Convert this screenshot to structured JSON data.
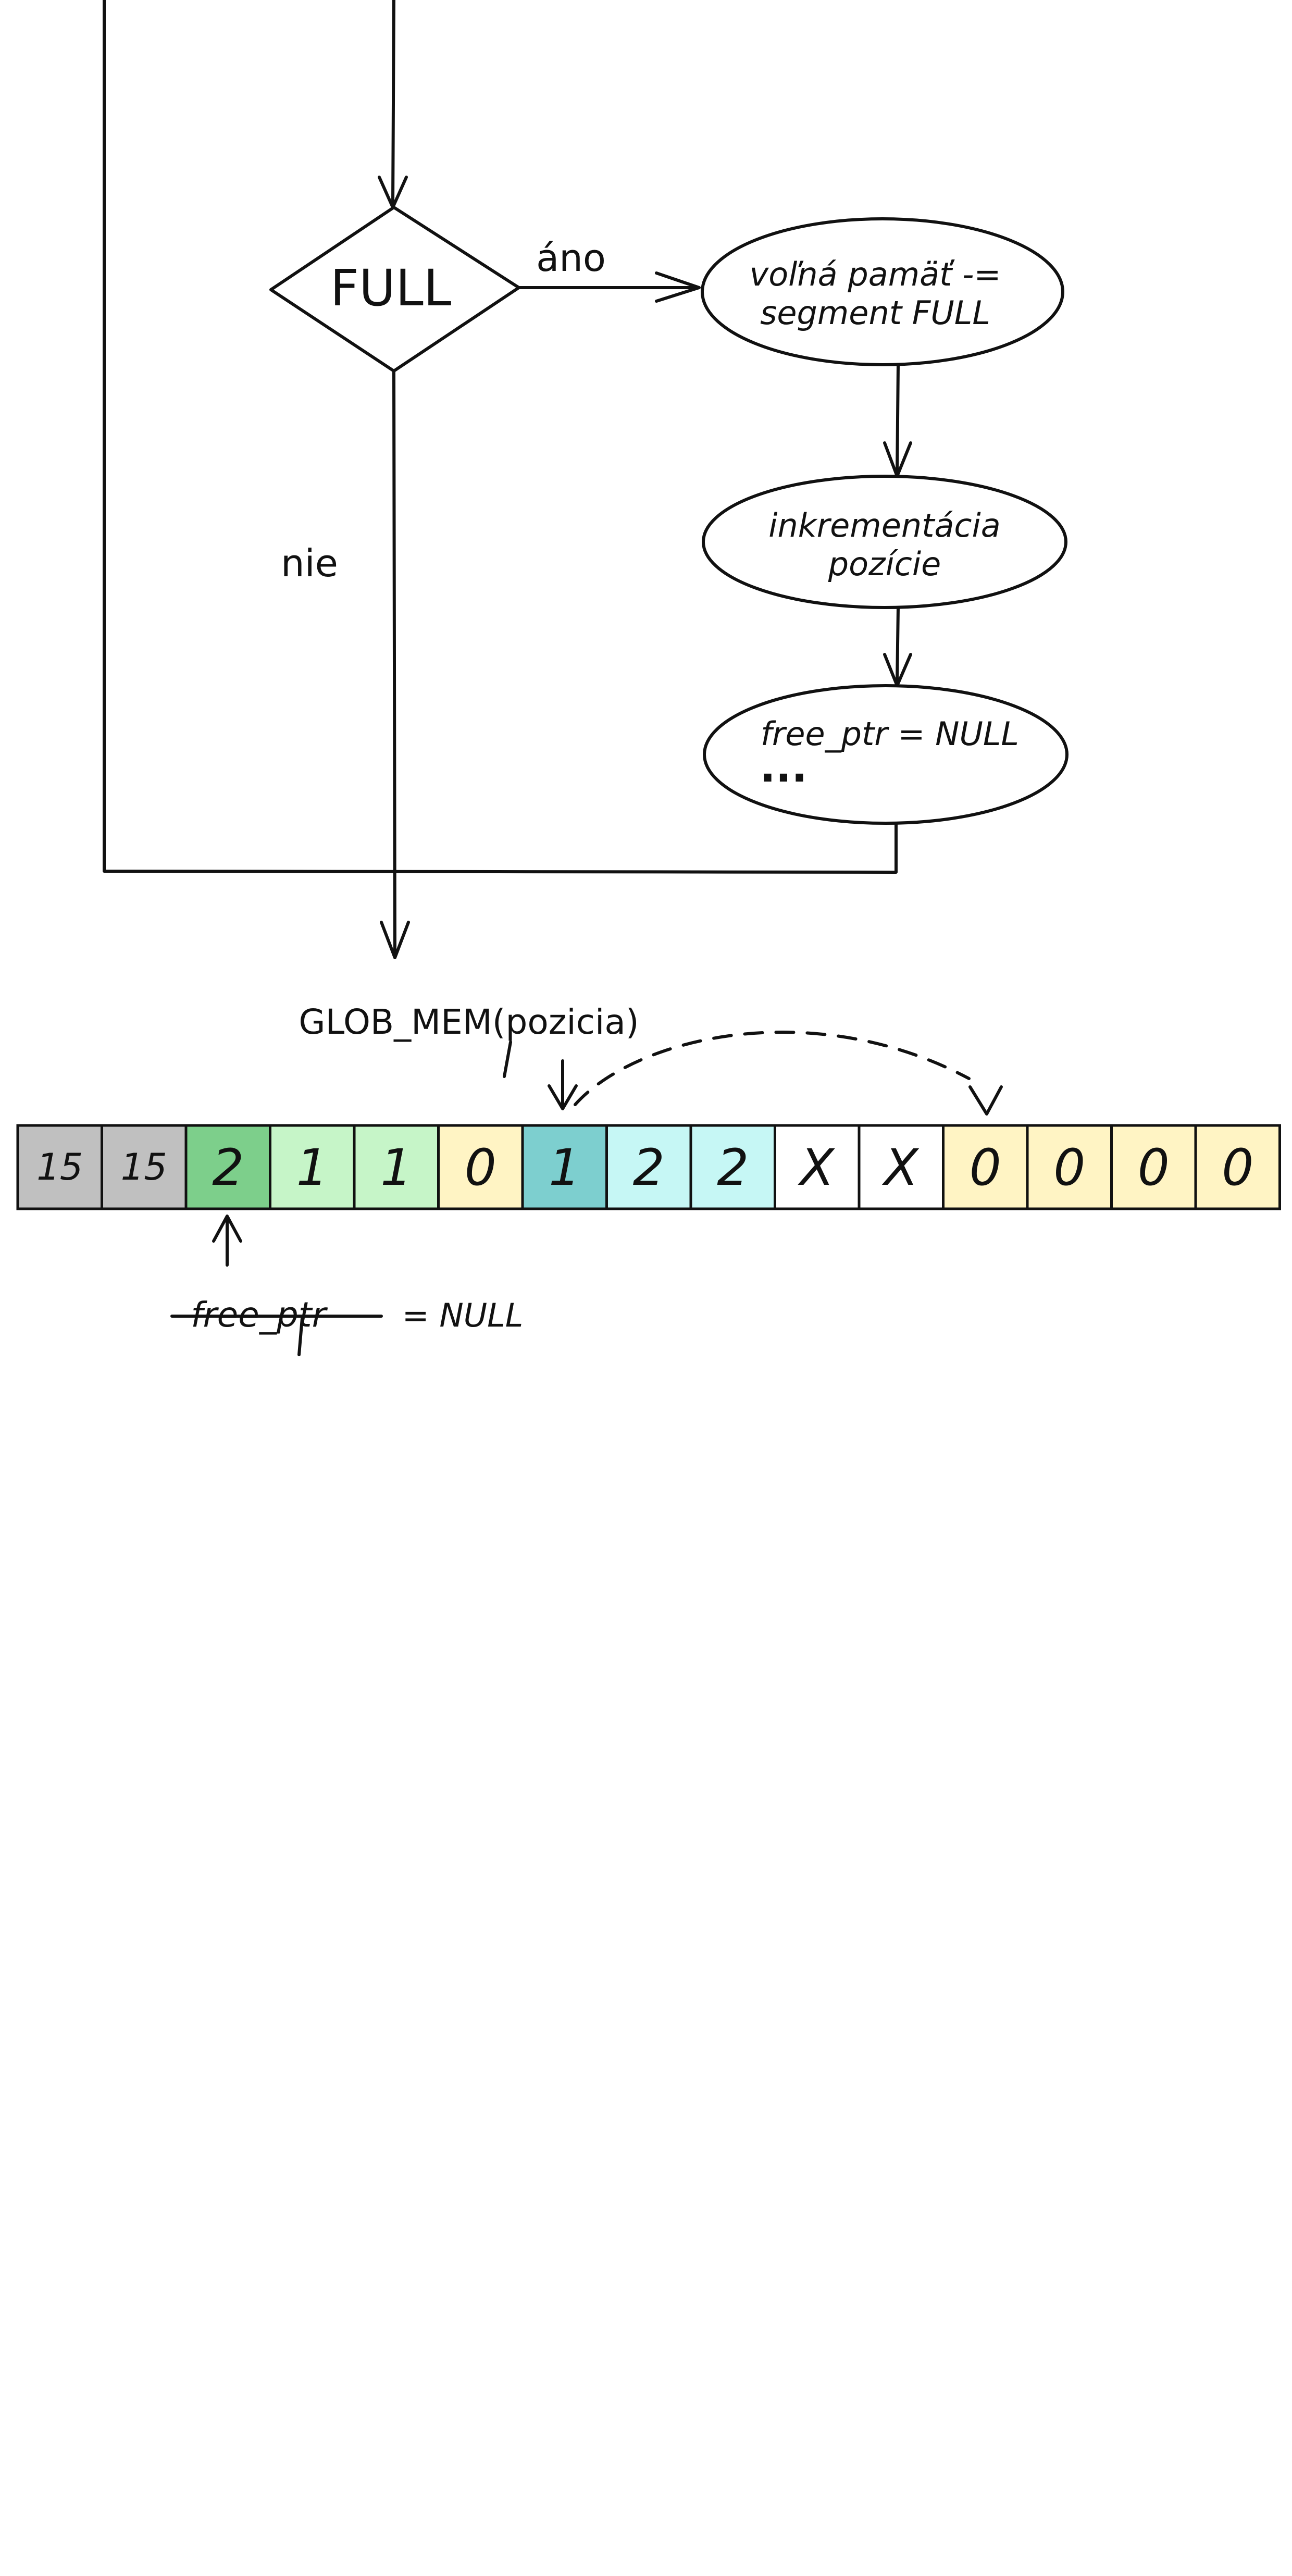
{
  "flowchart": {
    "decision_label": "FULL",
    "yes_label": "áno",
    "no_label": "nie",
    "step1_line1": "voľná pamäť -=",
    "step1_line2": "segment FULL",
    "step2_line1": "inkrementácia",
    "step2_line2": "pozície",
    "step3_line1": "free_ptr = NULL",
    "step3_line2": "..."
  },
  "memory": {
    "pointer_label": "GLOB_MEM(pozicia)",
    "free_ptr_label": "free_ptr",
    "free_ptr_suffix": "= NULL",
    "cells": [
      {
        "value": "15",
        "color": "#c0c0c0"
      },
      {
        "value": "15",
        "color": "#c0c0c0"
      },
      {
        "value": "2",
        "color": "#7dcf8b"
      },
      {
        "value": "1",
        "color": "#c6f5c8"
      },
      {
        "value": "1",
        "color": "#c6f5c8"
      },
      {
        "value": "0",
        "color": "#fff4c4"
      },
      {
        "value": "1",
        "color": "#7dcfcf"
      },
      {
        "value": "2",
        "color": "#c6f7f5"
      },
      {
        "value": "2",
        "color": "#c6f7f5"
      },
      {
        "value": "X",
        "color": "#ffffff"
      },
      {
        "value": "X",
        "color": "#ffffff"
      },
      {
        "value": "0",
        "color": "#fff4c4"
      },
      {
        "value": "0",
        "color": "#fff4c4"
      },
      {
        "value": "0",
        "color": "#fff4c4"
      },
      {
        "value": "0",
        "color": "#fff4c4"
      }
    ]
  }
}
